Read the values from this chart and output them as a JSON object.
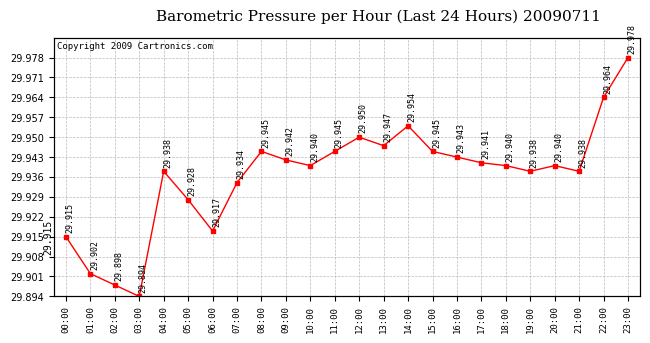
{
  "title": "Barometric Pressure per Hour (Last 24 Hours) 20090711",
  "copyright": "Copyright 2009 Cartronics.com",
  "hours": [
    "00:00",
    "01:00",
    "02:00",
    "03:00",
    "04:00",
    "05:00",
    "06:00",
    "07:00",
    "08:00",
    "09:00",
    "10:00",
    "11:00",
    "12:00",
    "13:00",
    "14:00",
    "15:00",
    "16:00",
    "17:00",
    "18:00",
    "19:00",
    "20:00",
    "21:00",
    "22:00",
    "23:00"
  ],
  "values": [
    29.915,
    29.902,
    29.898,
    29.894,
    29.938,
    29.928,
    29.917,
    29.934,
    29.945,
    29.942,
    29.94,
    29.945,
    29.95,
    29.947,
    29.954,
    29.945,
    29.943,
    29.941,
    29.94,
    29.938,
    29.94,
    29.938,
    29.964,
    29.978
  ],
  "ylim_min": 29.894,
  "ylim_max": 29.985,
  "yticks": [
    29.894,
    29.901,
    29.908,
    29.915,
    29.922,
    29.929,
    29.936,
    29.943,
    29.95,
    29.957,
    29.964,
    29.971,
    29.978
  ],
  "line_color": "red",
  "marker_color": "red",
  "bg_color": "white",
  "grid_color": "#bbbbbb",
  "title_fontsize": 11,
  "copyright_fontsize": 6.5,
  "annotation_fontsize": 6
}
